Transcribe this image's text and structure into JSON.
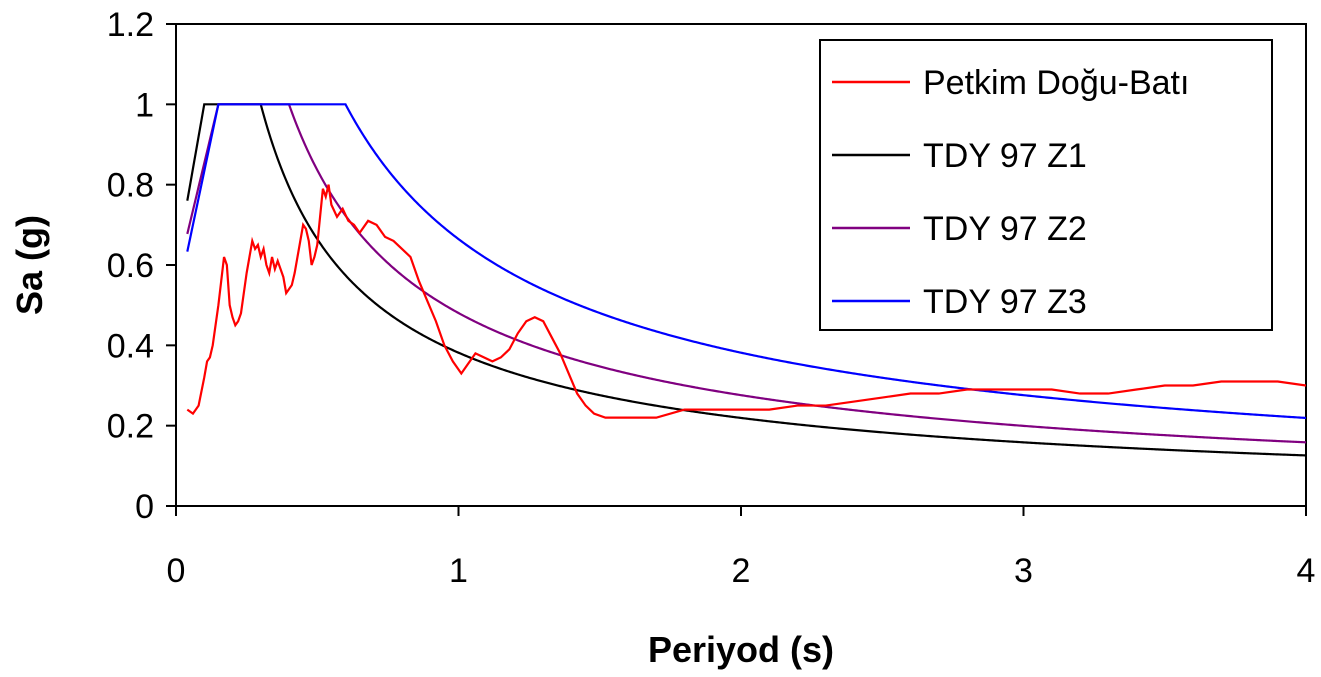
{
  "chart_data": {
    "type": "line",
    "title": "",
    "xlabel": "Periyod (s)",
    "ylabel": "Sa (g)",
    "xlim": [
      0,
      4
    ],
    "ylim": [
      0,
      1.2
    ],
    "xticks": [
      0,
      1,
      2,
      3,
      4
    ],
    "xtick_labels": [
      "0",
      "1",
      "2",
      "3",
      "4"
    ],
    "yticks": [
      0,
      0.2,
      0.4,
      0.6,
      0.8,
      1.0,
      1.2
    ],
    "ytick_labels": [
      "0",
      "0.2",
      "0.4",
      "0.6",
      "0.8",
      "1",
      "1.2"
    ],
    "grid": false,
    "legend_position": "top-right",
    "series": [
      {
        "name": "Petkim Doğu-Batı",
        "color": "#ff0000",
        "points": [
          [
            0.04,
            0.24
          ],
          [
            0.06,
            0.23
          ],
          [
            0.08,
            0.25
          ],
          [
            0.1,
            0.32
          ],
          [
            0.11,
            0.36
          ],
          [
            0.12,
            0.37
          ],
          [
            0.13,
            0.4
          ],
          [
            0.15,
            0.5
          ],
          [
            0.16,
            0.56
          ],
          [
            0.17,
            0.62
          ],
          [
            0.18,
            0.6
          ],
          [
            0.19,
            0.5
          ],
          [
            0.2,
            0.47
          ],
          [
            0.21,
            0.45
          ],
          [
            0.22,
            0.46
          ],
          [
            0.23,
            0.48
          ],
          [
            0.24,
            0.53
          ],
          [
            0.25,
            0.58
          ],
          [
            0.26,
            0.62
          ],
          [
            0.27,
            0.66
          ],
          [
            0.28,
            0.64
          ],
          [
            0.29,
            0.65
          ],
          [
            0.3,
            0.62
          ],
          [
            0.31,
            0.64
          ],
          [
            0.32,
            0.6
          ],
          [
            0.33,
            0.58
          ],
          [
            0.34,
            0.62
          ],
          [
            0.35,
            0.59
          ],
          [
            0.36,
            0.61
          ],
          [
            0.37,
            0.59
          ],
          [
            0.38,
            0.57
          ],
          [
            0.39,
            0.53
          ],
          [
            0.4,
            0.54
          ],
          [
            0.41,
            0.55
          ],
          [
            0.42,
            0.58
          ],
          [
            0.43,
            0.62
          ],
          [
            0.44,
            0.66
          ],
          [
            0.45,
            0.7
          ],
          [
            0.46,
            0.69
          ],
          [
            0.47,
            0.66
          ],
          [
            0.48,
            0.6
          ],
          [
            0.49,
            0.62
          ],
          [
            0.5,
            0.65
          ],
          [
            0.51,
            0.72
          ],
          [
            0.52,
            0.79
          ],
          [
            0.53,
            0.77
          ],
          [
            0.54,
            0.8
          ],
          [
            0.55,
            0.75
          ],
          [
            0.57,
            0.72
          ],
          [
            0.59,
            0.74
          ],
          [
            0.61,
            0.71
          ],
          [
            0.63,
            0.7
          ],
          [
            0.65,
            0.68
          ],
          [
            0.68,
            0.71
          ],
          [
            0.71,
            0.7
          ],
          [
            0.74,
            0.67
          ],
          [
            0.77,
            0.66
          ],
          [
            0.8,
            0.64
          ],
          [
            0.83,
            0.62
          ],
          [
            0.86,
            0.56
          ],
          [
            0.89,
            0.51
          ],
          [
            0.92,
            0.46
          ],
          [
            0.95,
            0.4
          ],
          [
            0.98,
            0.36
          ],
          [
            1.01,
            0.33
          ],
          [
            1.03,
            0.35
          ],
          [
            1.06,
            0.38
          ],
          [
            1.09,
            0.37
          ],
          [
            1.12,
            0.36
          ],
          [
            1.15,
            0.37
          ],
          [
            1.18,
            0.39
          ],
          [
            1.21,
            0.43
          ],
          [
            1.24,
            0.46
          ],
          [
            1.27,
            0.47
          ],
          [
            1.3,
            0.46
          ],
          [
            1.33,
            0.42
          ],
          [
            1.36,
            0.38
          ],
          [
            1.39,
            0.33
          ],
          [
            1.42,
            0.28
          ],
          [
            1.45,
            0.25
          ],
          [
            1.48,
            0.23
          ],
          [
            1.52,
            0.22
          ],
          [
            1.55,
            0.22
          ],
          [
            1.6,
            0.22
          ],
          [
            1.7,
            0.22
          ],
          [
            1.8,
            0.24
          ],
          [
            1.9,
            0.24
          ],
          [
            2.0,
            0.24
          ],
          [
            2.1,
            0.24
          ],
          [
            2.2,
            0.25
          ],
          [
            2.3,
            0.25
          ],
          [
            2.4,
            0.26
          ],
          [
            2.5,
            0.27
          ],
          [
            2.6,
            0.28
          ],
          [
            2.7,
            0.28
          ],
          [
            2.8,
            0.29
          ],
          [
            2.9,
            0.29
          ],
          [
            3.0,
            0.29
          ],
          [
            3.1,
            0.29
          ],
          [
            3.2,
            0.28
          ],
          [
            3.3,
            0.28
          ],
          [
            3.4,
            0.29
          ],
          [
            3.5,
            0.3
          ],
          [
            3.6,
            0.3
          ],
          [
            3.7,
            0.31
          ],
          [
            3.8,
            0.31
          ],
          [
            3.9,
            0.31
          ],
          [
            4.0,
            0.3
          ]
        ]
      },
      {
        "name": "TDY 97 Z1",
        "color": "#000000",
        "ta": 0.1,
        "tb": 0.3,
        "s_at_zero": 0.6,
        "s_peak": 1.0,
        "t_start": 0.04
      },
      {
        "name": "TDY 97 Z2",
        "color": "#800080",
        "ta": 0.15,
        "tb": 0.4,
        "s_at_zero": 0.56,
        "s_peak": 1.0,
        "t_start": 0.04
      },
      {
        "name": "TDY 97 Z3",
        "color": "#0000ff",
        "ta": 0.15,
        "tb": 0.6,
        "s_at_zero": 0.5,
        "s_peak": 1.0,
        "t_start": 0.04
      }
    ]
  }
}
